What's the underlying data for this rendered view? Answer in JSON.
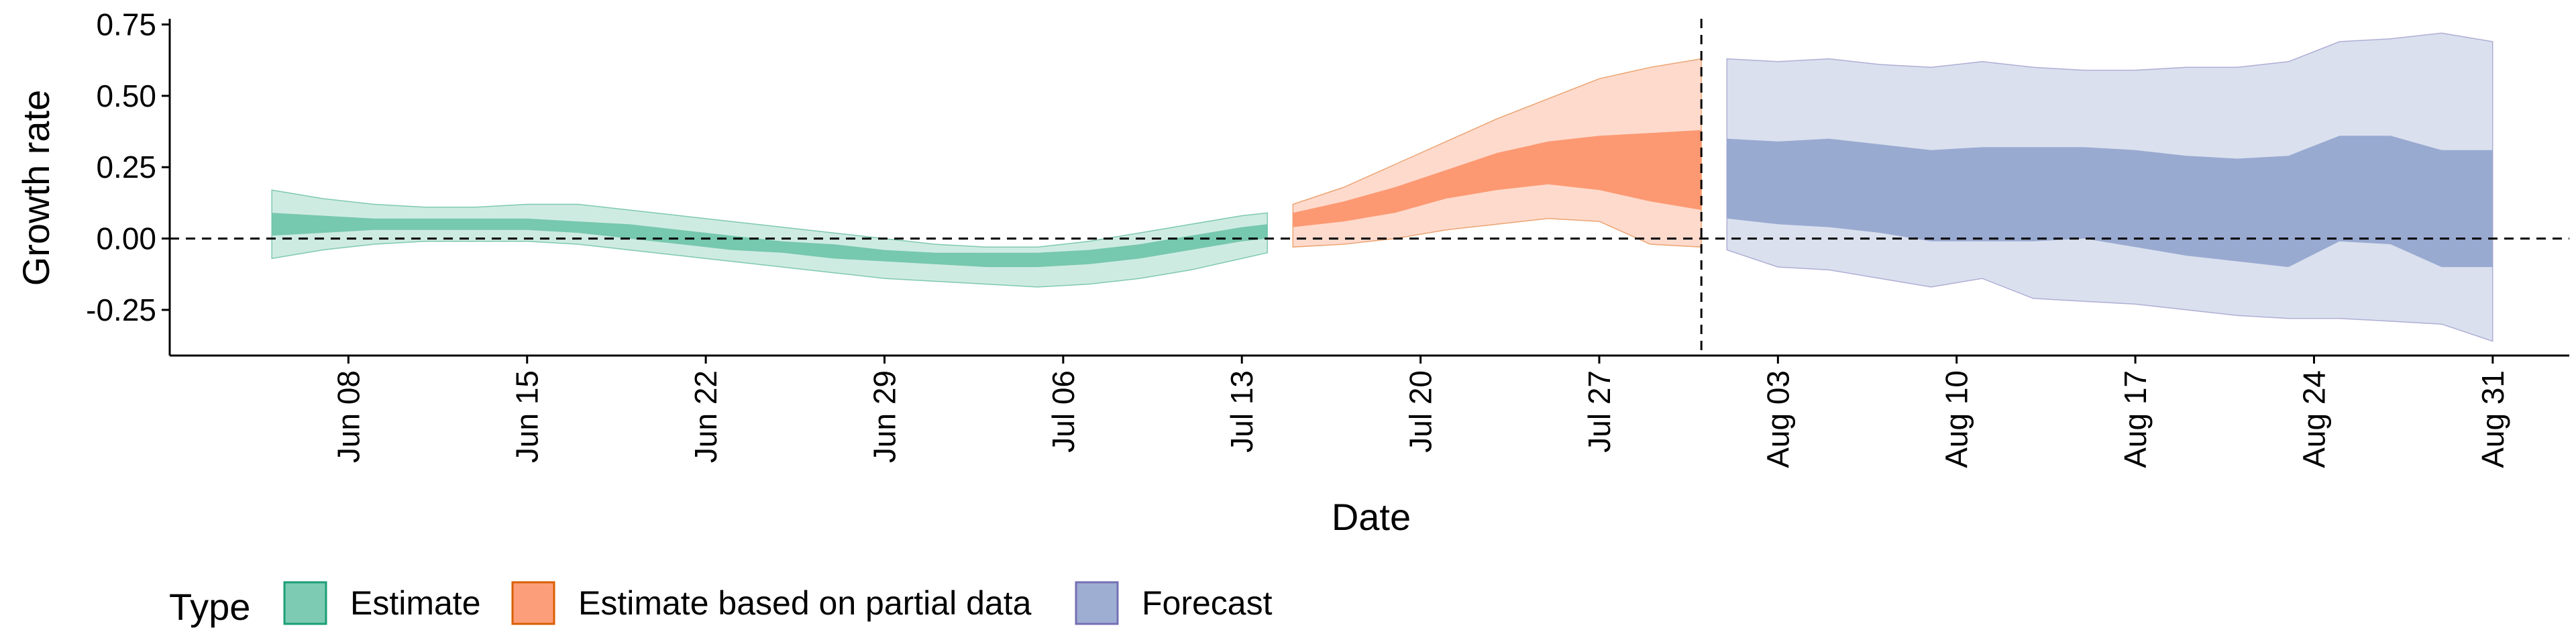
{
  "chart_data": {
    "type": "area",
    "xlabel": "Date",
    "ylabel": "Growth rate",
    "ylim": [
      -0.41,
      0.77
    ],
    "xlim": [
      "2020-06-01",
      "2020-09-03"
    ],
    "y_ticks": [
      "0.75",
      "0.50",
      "0.25",
      "0.00",
      "-0.25"
    ],
    "y_tick_values": [
      0.75,
      0.5,
      0.25,
      0.0,
      -0.25
    ],
    "x_ticks": [
      "Jun 08",
      "Jun 15",
      "Jun 22",
      "Jun 29",
      "Jul 06",
      "Jul 13",
      "Jul 20",
      "Jul 27",
      "Aug 03",
      "Aug 10",
      "Aug 17",
      "Aug 24",
      "Aug 31"
    ],
    "x_tick_dates": [
      "2020-06-08",
      "2020-06-15",
      "2020-06-22",
      "2020-06-29",
      "2020-07-06",
      "2020-07-13",
      "2020-07-20",
      "2020-07-27",
      "2020-08-03",
      "2020-08-10",
      "2020-08-17",
      "2020-08-24",
      "2020-08-31"
    ],
    "reference_lines": {
      "horizontal": 0.0,
      "vertical": "2020-07-31"
    },
    "legend": {
      "title": "Type",
      "position": "bottom-left",
      "entries": [
        "Estimate",
        "Estimate based on partial data",
        "Forecast"
      ]
    },
    "series": [
      {
        "name": "Estimate",
        "fill": "#66c2a5",
        "stroke": "#1b9e77",
        "dates": [
          "2020-06-05",
          "2020-06-07",
          "2020-06-09",
          "2020-06-11",
          "2020-06-13",
          "2020-06-15",
          "2020-06-17",
          "2020-06-19",
          "2020-06-21",
          "2020-06-23",
          "2020-06-25",
          "2020-06-27",
          "2020-06-29",
          "2020-07-01",
          "2020-07-03",
          "2020-07-05",
          "2020-07-07",
          "2020-07-09",
          "2020-07-11",
          "2020-07-13",
          "2020-07-14"
        ],
        "outer_lower": [
          -0.07,
          -0.04,
          -0.02,
          -0.01,
          -0.01,
          -0.01,
          -0.02,
          -0.04,
          -0.06,
          -0.08,
          -0.1,
          -0.12,
          -0.14,
          -0.15,
          -0.16,
          -0.17,
          -0.16,
          -0.14,
          -0.11,
          -0.07,
          -0.05
        ],
        "inner_lower": [
          0.01,
          0.02,
          0.03,
          0.03,
          0.03,
          0.03,
          0.02,
          0.0,
          -0.02,
          -0.04,
          -0.05,
          -0.07,
          -0.08,
          -0.09,
          -0.1,
          -0.1,
          -0.09,
          -0.07,
          -0.04,
          -0.01,
          0.0
        ],
        "inner_upper": [
          0.09,
          0.08,
          0.07,
          0.07,
          0.07,
          0.07,
          0.06,
          0.05,
          0.03,
          0.01,
          -0.01,
          -0.02,
          -0.04,
          -0.05,
          -0.05,
          -0.05,
          -0.04,
          -0.02,
          0.01,
          0.04,
          0.05
        ],
        "outer_upper": [
          0.17,
          0.14,
          0.12,
          0.11,
          0.11,
          0.12,
          0.12,
          0.1,
          0.08,
          0.06,
          0.04,
          0.02,
          0.0,
          -0.02,
          -0.03,
          -0.03,
          -0.01,
          0.02,
          0.05,
          0.08,
          0.09
        ]
      },
      {
        "name": "Estimate based on partial data",
        "fill": "#fc8d62",
        "stroke": "#d95f02",
        "dates": [
          "2020-07-15",
          "2020-07-17",
          "2020-07-19",
          "2020-07-21",
          "2020-07-23",
          "2020-07-25",
          "2020-07-27",
          "2020-07-29",
          "2020-07-31"
        ],
        "outer_lower": [
          -0.03,
          -0.02,
          0.0,
          0.03,
          0.05,
          0.07,
          0.06,
          -0.02,
          -0.03
        ],
        "inner_lower": [
          0.04,
          0.06,
          0.09,
          0.14,
          0.17,
          0.19,
          0.17,
          0.13,
          0.1
        ],
        "inner_upper": [
          0.09,
          0.13,
          0.18,
          0.24,
          0.3,
          0.34,
          0.36,
          0.37,
          0.38
        ],
        "outer_upper": [
          0.12,
          0.18,
          0.26,
          0.34,
          0.42,
          0.49,
          0.56,
          0.6,
          0.63
        ]
      },
      {
        "name": "Forecast",
        "fill": "#8da0cb",
        "stroke": "#7570b3",
        "dates": [
          "2020-08-01",
          "2020-08-03",
          "2020-08-05",
          "2020-08-07",
          "2020-08-09",
          "2020-08-11",
          "2020-08-13",
          "2020-08-15",
          "2020-08-17",
          "2020-08-19",
          "2020-08-21",
          "2020-08-23",
          "2020-08-25",
          "2020-08-27",
          "2020-08-29",
          "2020-08-31"
        ],
        "outer_lower": [
          -0.04,
          -0.1,
          -0.11,
          -0.14,
          -0.17,
          -0.14,
          -0.21,
          -0.22,
          -0.23,
          -0.25,
          -0.27,
          -0.28,
          -0.28,
          -0.29,
          -0.3,
          -0.36
        ],
        "inner_lower": [
          0.07,
          0.05,
          0.04,
          0.02,
          -0.01,
          -0.01,
          -0.01,
          0.0,
          -0.03,
          -0.06,
          -0.08,
          -0.1,
          -0.01,
          -0.02,
          -0.1,
          -0.1
        ],
        "inner_upper": [
          0.35,
          0.34,
          0.35,
          0.33,
          0.31,
          0.32,
          0.32,
          0.32,
          0.31,
          0.29,
          0.28,
          0.29,
          0.36,
          0.36,
          0.31,
          0.31
        ],
        "outer_upper": [
          0.63,
          0.62,
          0.63,
          0.61,
          0.6,
          0.62,
          0.6,
          0.59,
          0.59,
          0.6,
          0.6,
          0.62,
          0.69,
          0.7,
          0.72,
          0.69
        ]
      }
    ]
  }
}
